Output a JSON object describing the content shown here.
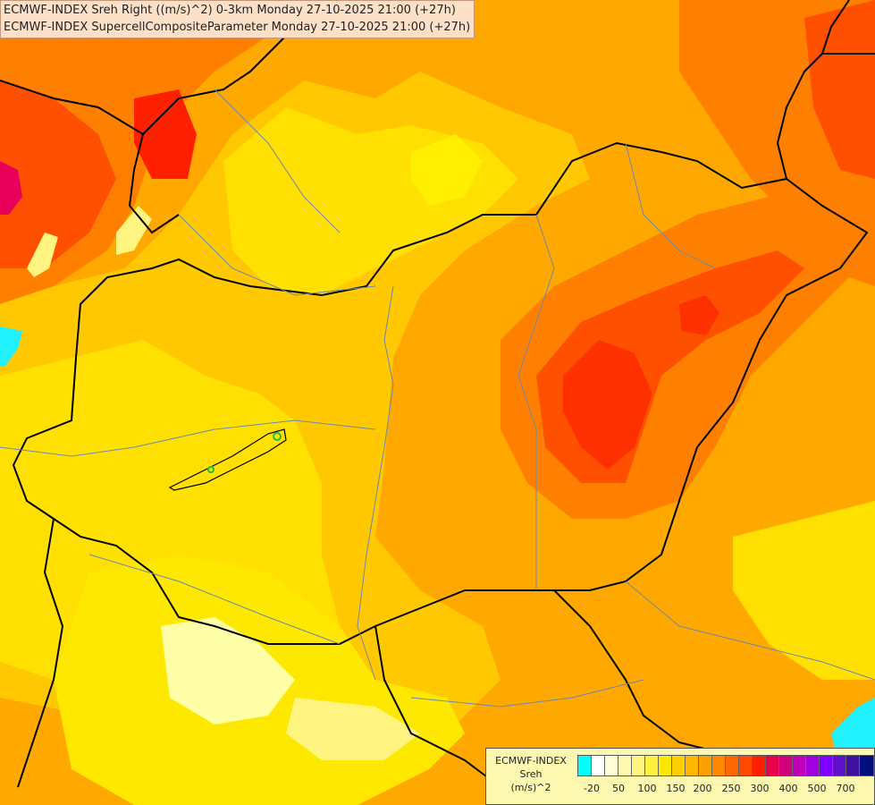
{
  "titles": [
    "ECMWF-INDEX Sreh Right ((m/s)^2) 0-3km Monday 27-10-2025 21:00 (+27h)",
    "ECMWF-INDEX SupercellCompositeParameter Monday 27-10-2025 21:00 (+27h)"
  ],
  "legend": {
    "line1": "ECMWF-INDEX",
    "line2": "Sreh",
    "line3": "(m/s)^2",
    "colors": [
      "#00ffff",
      "#ffffff",
      "#fffcd8",
      "#fff8b0",
      "#fff480",
      "#fff040",
      "#ffe800",
      "#ffd000",
      "#ffb800",
      "#ffa000",
      "#ff8800",
      "#ff6800",
      "#ff4800",
      "#ff2000",
      "#e8004a",
      "#d0007a",
      "#c000b8",
      "#a000e0",
      "#8000ff",
      "#6010c8",
      "#4010a0",
      "#00107a"
    ],
    "ticks": [
      "-20",
      "50",
      "100",
      "150",
      "200",
      "250",
      "300",
      "400",
      "500",
      "700"
    ]
  },
  "colors": {
    "pale": "#ffffa8",
    "yellow": "#ffe000",
    "yellow_orange": "#ffc800",
    "orange": "#ffa800",
    "dark_orange": "#ff8000",
    "red_orange": "#ff5000",
    "red": "#ff2000",
    "magenta": "#e8005a",
    "cyan": "#20f0ff"
  }
}
